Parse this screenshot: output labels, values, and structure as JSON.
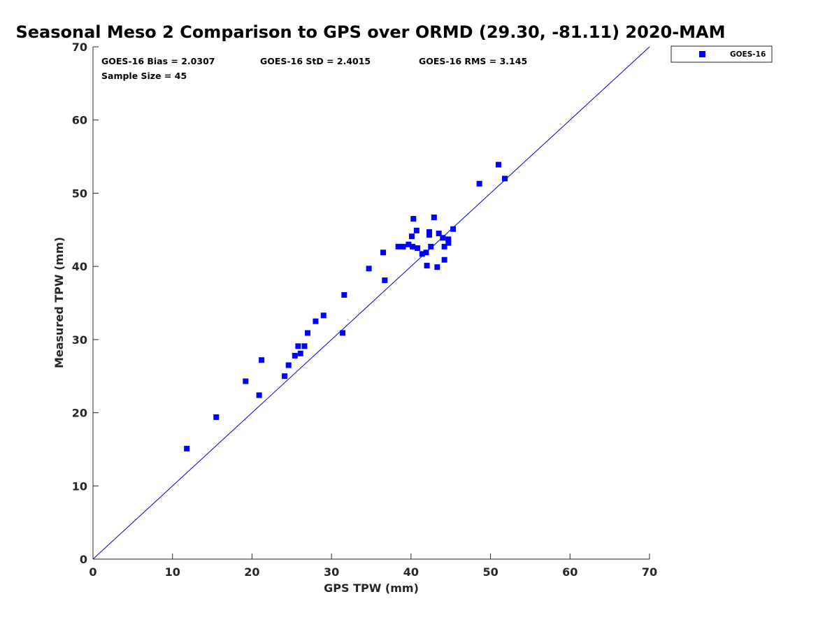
{
  "chart_data": {
    "type": "scatter",
    "title": "Seasonal Meso 2 Comparison to GPS over ORMD (29.30, -81.11) 2020-MAM",
    "xlabel": "GPS TPW (mm)",
    "ylabel": "Measured TPW (mm)",
    "xlim": [
      0,
      70
    ],
    "ylim": [
      0,
      70
    ],
    "xticks": [
      "0",
      "10",
      "20",
      "30",
      "40",
      "50",
      "60",
      "70"
    ],
    "yticks": [
      "0",
      "10",
      "20",
      "30",
      "40",
      "50",
      "60",
      "70"
    ],
    "grid": false,
    "legend_position": "top-right-outside",
    "reference_line": {
      "type": "1:1",
      "from": [
        0,
        0
      ],
      "to": [
        70,
        70
      ],
      "color": "#0000cc"
    },
    "annotations": {
      "bias": "GOES-16 Bias = 2.0307",
      "std": "GOES-16 StD = 2.4015",
      "rms": "GOES-16 RMS = 3.145",
      "sample_size": "Sample Size = 45"
    },
    "series": [
      {
        "name": "GOES-16",
        "color": "#0000ff",
        "marker": "square",
        "points": [
          [
            11.8,
            15.1
          ],
          [
            15.5,
            19.4
          ],
          [
            19.2,
            24.3
          ],
          [
            20.9,
            22.4
          ],
          [
            21.2,
            27.2
          ],
          [
            24.1,
            25.0
          ],
          [
            24.6,
            26.5
          ],
          [
            25.4,
            27.8
          ],
          [
            25.8,
            29.1
          ],
          [
            26.1,
            28.1
          ],
          [
            26.6,
            29.1
          ],
          [
            27.0,
            30.9
          ],
          [
            28.0,
            32.5
          ],
          [
            29.0,
            33.3
          ],
          [
            31.4,
            30.9
          ],
          [
            31.6,
            36.1
          ],
          [
            34.7,
            39.7
          ],
          [
            36.5,
            41.9
          ],
          [
            36.7,
            38.1
          ],
          [
            38.4,
            42.7
          ],
          [
            39.0,
            42.7
          ],
          [
            39.7,
            43.0
          ],
          [
            40.1,
            44.1
          ],
          [
            40.2,
            42.7
          ],
          [
            40.3,
            46.5
          ],
          [
            40.7,
            44.9
          ],
          [
            40.8,
            42.5
          ],
          [
            41.4,
            41.7
          ],
          [
            41.9,
            41.9
          ],
          [
            42.0,
            40.1
          ],
          [
            42.3,
            44.7
          ],
          [
            42.3,
            44.3
          ],
          [
            42.5,
            42.7
          ],
          [
            42.9,
            46.7
          ],
          [
            43.3,
            39.9
          ],
          [
            43.5,
            44.5
          ],
          [
            44.0,
            43.9
          ],
          [
            44.2,
            42.7
          ],
          [
            44.2,
            40.9
          ],
          [
            44.7,
            43.7
          ],
          [
            44.7,
            43.2
          ],
          [
            45.3,
            45.1
          ],
          [
            48.6,
            51.3
          ],
          [
            51.0,
            53.9
          ],
          [
            51.8,
            52.0
          ]
        ]
      }
    ]
  }
}
